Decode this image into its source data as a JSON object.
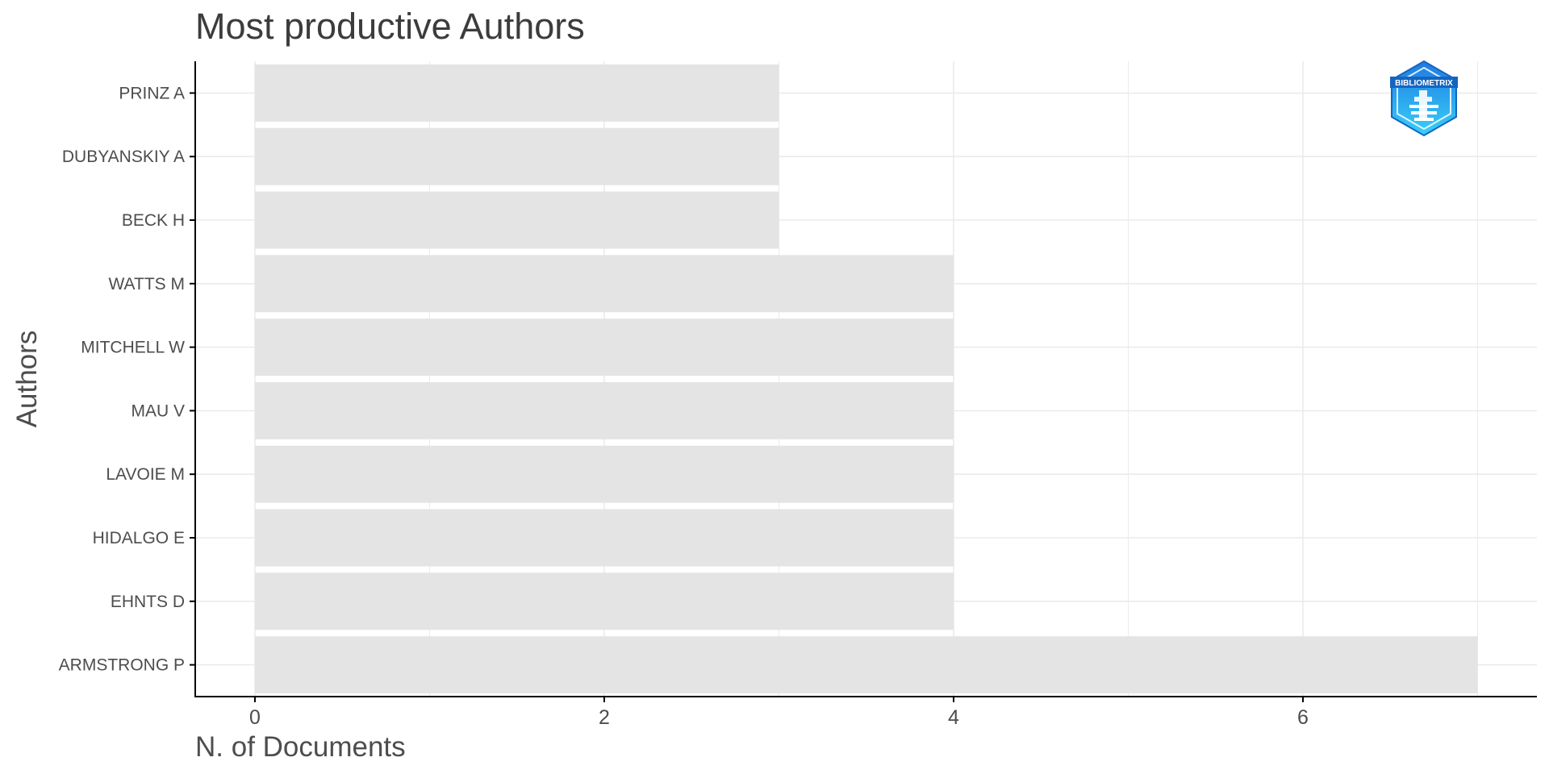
{
  "chart_data": {
    "type": "bar",
    "orientation": "horizontal",
    "title": "Most productive Authors",
    "xlabel": "N. of Documents",
    "ylabel": "Authors",
    "categories": [
      "PRINZ A",
      "DUBYANSKIY A",
      "BECK H",
      "WATTS M",
      "MITCHELL W",
      "MAU V",
      "LAVOIE M",
      "HIDALGO E",
      "EHNTS D",
      "ARMSTRONG P"
    ],
    "values": [
      3,
      3,
      3,
      4,
      4,
      4,
      4,
      4,
      4,
      7
    ],
    "xlim": [
      0,
      7.3
    ],
    "x_ticks": [
      0,
      2,
      4,
      6
    ],
    "grid": true,
    "bar_color": "#e4e4e4",
    "grid_color": "#ebebeb",
    "axis_color": "#000000",
    "logo": {
      "text": "BIBLIOMETRIX",
      "colors": [
        "#1e88e5",
        "#33ccf5"
      ]
    }
  }
}
